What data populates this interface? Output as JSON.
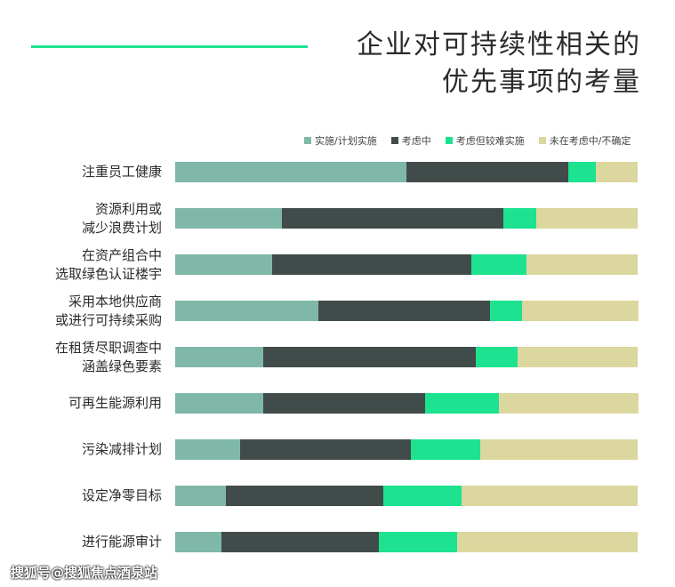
{
  "title": [
    "企业对可持续性相关的",
    "优先事项的考量"
  ],
  "watermark": "搜狐号@搜狐焦点酒泉站",
  "chart_data": {
    "type": "bar",
    "orientation": "horizontal-stacked-100",
    "title": "企业对可持续性相关的优先事项的考量",
    "categories": [
      [
        "注重员工健康"
      ],
      [
        "资源利用或",
        "减少浪费计划"
      ],
      [
        "在资产组合中",
        "选取绿色认证楼宇"
      ],
      [
        "采用本地供应商",
        "或进行可持续采购"
      ],
      [
        "在租赁尽职调查中",
        "涵盖绿色要素"
      ],
      [
        "可再生能源利用"
      ],
      [
        "污染减排计划"
      ],
      [
        "设定净零目标"
      ],
      [
        "进行能源审计"
      ]
    ],
    "series": [
      {
        "name": "实施/计划实施",
        "color": "#7fb8a8",
        "values": [
          50,
          23,
          21,
          31,
          19,
          19,
          14,
          11,
          10
        ]
      },
      {
        "name": "考虑中",
        "color": "#414c4a",
        "values": [
          35,
          48,
          43,
          37,
          46,
          35,
          37,
          34,
          34
        ]
      },
      {
        "name": "考虑但较难实施",
        "color": "#1de28f",
        "values": [
          6,
          7,
          12,
          7,
          9,
          16,
          15,
          17,
          17
        ]
      },
      {
        "name": "未在考虑中/不确定",
        "color": "#dcd79f",
        "values": [
          9,
          22,
          24,
          25,
          26,
          30,
          34,
          38,
          39
        ]
      }
    ],
    "xlim": [
      0,
      100
    ],
    "legend": "top-right",
    "grid": false
  }
}
